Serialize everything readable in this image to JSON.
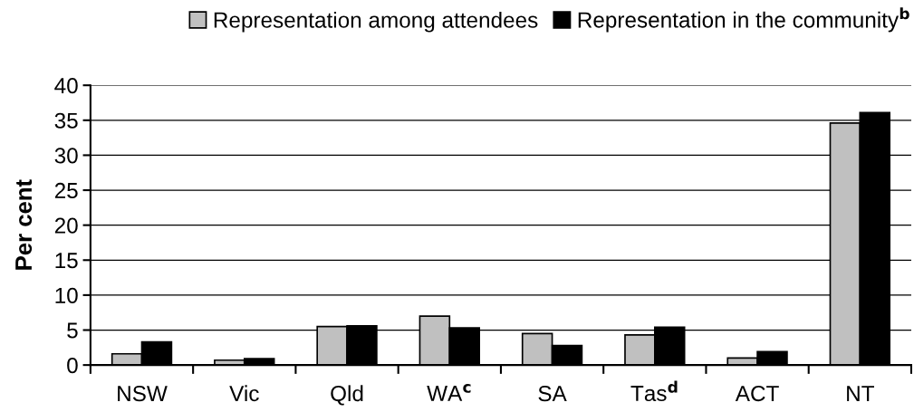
{
  "chart_data": {
    "type": "bar",
    "categories": [
      "NSW",
      "Vic",
      "Qld",
      "WA$^{c}$",
      "SA",
      "Tas$^{d}$",
      "ACT",
      "NT"
    ],
    "series": [
      {
        "name": "Representation among attendees",
        "color": "#c0c0c0",
        "values": [
          1.6,
          0.7,
          5.5,
          7.0,
          4.5,
          4.3,
          1.0,
          34.6
        ]
      },
      {
        "name": "Representation in the community$^{b}$",
        "color": "#000000",
        "values": [
          3.3,
          0.9,
          5.6,
          5.3,
          2.8,
          5.4,
          1.9,
          36.1
        ]
      }
    ],
    "ylabel": "Per cent",
    "ylim": [
      0,
      40
    ],
    "yticks": [
      0,
      5,
      10,
      15,
      20,
      25,
      30,
      35,
      40
    ],
    "grid": "y",
    "legend": "top"
  }
}
